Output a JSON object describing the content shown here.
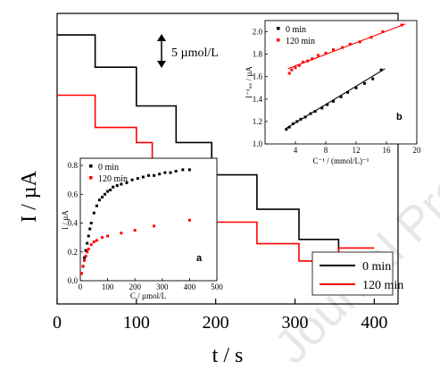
{
  "chart_data": [
    {
      "type": "line",
      "xlabel": "t / s",
      "ylabel": "I / µA",
      "xlim": [
        0,
        430
      ],
      "xticks": [
        "0",
        "100",
        "200",
        "300",
        "400"
      ],
      "annotation": "5 µmol/L",
      "legend": "bottom-right",
      "series": [
        {
          "name": "0 min",
          "color": "#000000",
          "x": [
            0,
            48,
            48,
            100,
            100,
            150,
            150,
            195,
            195,
            252,
            252,
            305,
            305,
            355,
            355,
            400
          ],
          "y": [
            1.55,
            1.55,
            1.4,
            1.4,
            1.22,
            1.22,
            1.05,
            1.05,
            0.9,
            0.9,
            0.74,
            0.74,
            0.6,
            0.6,
            0.43,
            0.43
          ]
        },
        {
          "name": "120 min",
          "color": "#ff0000",
          "x": [
            0,
            48,
            48,
            100,
            100,
            120,
            120,
            160,
            160,
            195,
            195,
            252,
            252,
            305,
            305,
            355,
            355,
            400
          ],
          "y": [
            1.27,
            1.27,
            1.12,
            1.12,
            1.05,
            1.05,
            0.93,
            0.93,
            0.8,
            0.8,
            0.68,
            0.68,
            0.58,
            0.58,
            0.5,
            0.5,
            0.56,
            0.56
          ]
        }
      ]
    },
    {
      "type": "scatter",
      "panel_label": "a",
      "xlabel": "C / µmol/L",
      "ylabel": "I / µA",
      "xlim": [
        0,
        500
      ],
      "ylim": [
        0,
        0.85
      ],
      "xticks": [
        "0",
        "100",
        "200",
        "300",
        "400",
        "500"
      ],
      "yticks": [
        "0.0",
        "0.2",
        "0.4",
        "0.6",
        "0.8"
      ],
      "legend": "top-left",
      "series": [
        {
          "name": "0 min",
          "color": "#000000",
          "x": [
            5,
            10,
            15,
            20,
            25,
            30,
            35,
            40,
            50,
            60,
            70,
            80,
            90,
            100,
            110,
            120,
            135,
            150,
            170,
            190,
            210,
            230,
            250,
            270,
            290,
            310,
            330,
            350,
            375,
            400
          ],
          "y": [
            0.05,
            0.1,
            0.16,
            0.21,
            0.26,
            0.31,
            0.36,
            0.4,
            0.47,
            0.52,
            0.56,
            0.58,
            0.6,
            0.62,
            0.63,
            0.65,
            0.66,
            0.67,
            0.68,
            0.7,
            0.71,
            0.72,
            0.73,
            0.73,
            0.74,
            0.75,
            0.75,
            0.76,
            0.77,
            0.77
          ]
        },
        {
          "name": "120 min",
          "color": "#ff0000",
          "x": [
            5,
            10,
            15,
            20,
            25,
            30,
            40,
            50,
            60,
            80,
            100,
            150,
            200,
            270,
            400
          ],
          "y": [
            0.05,
            0.1,
            0.14,
            0.17,
            0.2,
            0.22,
            0.25,
            0.27,
            0.28,
            0.3,
            0.31,
            0.33,
            0.35,
            0.38,
            0.42
          ]
        }
      ]
    },
    {
      "type": "scatter",
      "panel_label": "b",
      "xlabel": "C⁻¹ / (mmol/L)⁻¹",
      "ylabel": "I⁻¹ₛₛ / µA",
      "xlim": [
        0,
        20
      ],
      "ylim": [
        1.0,
        2.1
      ],
      "xticks": [
        "4",
        "8",
        "12",
        "16",
        "20"
      ],
      "yticks": [
        "1.0",
        "1.2",
        "1.4",
        "1.6",
        "1.8",
        "2.0"
      ],
      "legend": "top-left",
      "series": [
        {
          "name": "0 min",
          "color": "#000000",
          "fit": [
            2.8,
            1.14,
            15.8,
            1.67
          ],
          "x": [
            2.8,
            3.2,
            3.7,
            4.2,
            4.7,
            5.3,
            6.0,
            6.6,
            7.5,
            8.2,
            9.0,
            10.0,
            10.9,
            12.0,
            13.1,
            14.2,
            15.3
          ],
          "y": [
            1.13,
            1.15,
            1.18,
            1.2,
            1.22,
            1.24,
            1.27,
            1.29,
            1.32,
            1.35,
            1.38,
            1.42,
            1.46,
            1.5,
            1.54,
            1.58,
            1.66
          ]
        },
        {
          "name": "120 min",
          "color": "#ff0000",
          "fit": [
            3.0,
            1.67,
            18.5,
            2.07
          ],
          "x": [
            3.2,
            3.5,
            4.0,
            4.5,
            5.0,
            5.6,
            6.2,
            7.0,
            8.0,
            9.0,
            10.2,
            11.2,
            12.5,
            14.0,
            15.5,
            18.0
          ],
          "y": [
            1.63,
            1.66,
            1.68,
            1.7,
            1.73,
            1.74,
            1.76,
            1.79,
            1.81,
            1.84,
            1.86,
            1.89,
            1.91,
            1.95,
            2.0,
            2.06
          ]
        }
      ]
    }
  ]
}
